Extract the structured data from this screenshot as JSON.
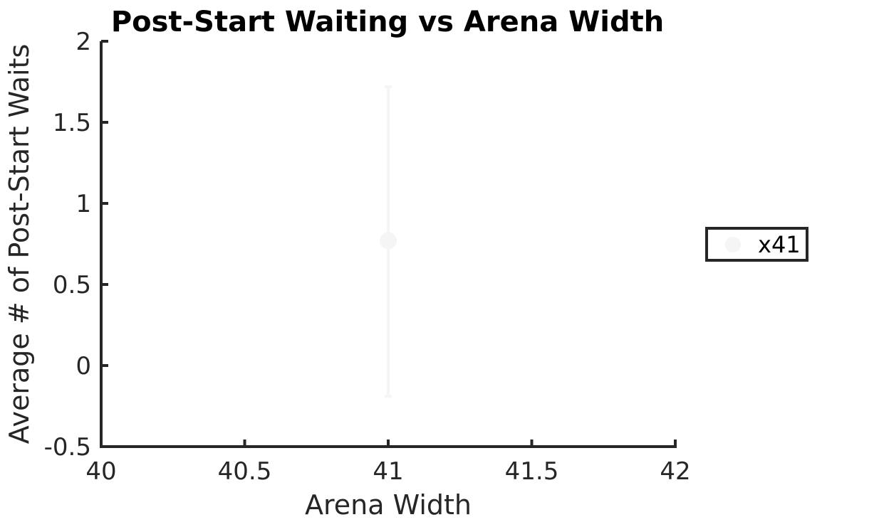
{
  "chart_data": {
    "type": "scatter",
    "title": "Post-Start Waiting vs Arena Width",
    "xlabel": "Arena Width",
    "ylabel": "Average # of Post-Start Waits",
    "xlim": [
      40,
      42
    ],
    "ylim": [
      -0.5,
      2
    ],
    "xticks": [
      "40",
      "40.5",
      "41",
      "41.5",
      "42"
    ],
    "xtick_values": [
      40,
      40.5,
      41,
      41.5,
      42
    ],
    "yticks": [
      "-0.5",
      "0",
      "0.5",
      "1",
      "1.5",
      "2"
    ],
    "ytick_values": [
      -0.5,
      0,
      0.5,
      1,
      1.5,
      2
    ],
    "grid": false,
    "legend_position": "right",
    "series": [
      {
        "name": "x41",
        "x": [
          41
        ],
        "y": [
          0.77
        ],
        "error_low": [
          -0.19
        ],
        "error_high": [
          1.72
        ],
        "color": "#f5f5f5"
      }
    ]
  }
}
